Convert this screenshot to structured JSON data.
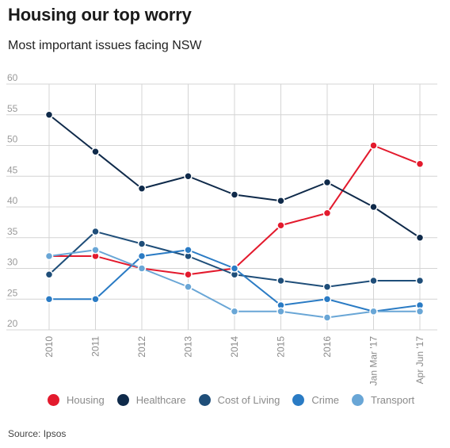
{
  "title": "Housing our top worry",
  "subtitle": "Most important issues facing NSW",
  "source": "Source: Ipsos",
  "chart_data": {
    "type": "line",
    "title": "Housing our top worry",
    "subtitle": "Most important issues facing NSW",
    "xlabel": "",
    "ylabel": "",
    "categories": [
      "2010",
      "2011",
      "2012",
      "2013",
      "2014",
      "2015",
      "2016",
      "Jan Mar '17",
      "Apr Jun '17"
    ],
    "ylim": [
      20,
      60
    ],
    "yticks": [
      "20",
      "25",
      "30",
      "35",
      "40",
      "45",
      "50",
      "55",
      "60"
    ],
    "grid": true,
    "legend_position": "bottom",
    "series": [
      {
        "name": "Housing",
        "color": "#e31a2d",
        "values": [
          32,
          32,
          30,
          29,
          30,
          37,
          39,
          50,
          47
        ]
      },
      {
        "name": "Healthcare",
        "color": "#0f2a4a",
        "values": [
          55,
          49,
          43,
          45,
          42,
          41,
          44,
          40,
          35
        ]
      },
      {
        "name": "Cost of Living",
        "color": "#1f4e79",
        "values": [
          29,
          36,
          34,
          32,
          29,
          28,
          27,
          28,
          28
        ]
      },
      {
        "name": "Crime",
        "color": "#2a7bc4",
        "values": [
          25,
          25,
          32,
          33,
          30,
          24,
          25,
          23,
          24
        ]
      },
      {
        "name": "Transport",
        "color": "#69a6d6",
        "values": [
          32,
          33,
          30,
          27,
          23,
          23,
          22,
          23,
          23
        ]
      }
    ]
  }
}
